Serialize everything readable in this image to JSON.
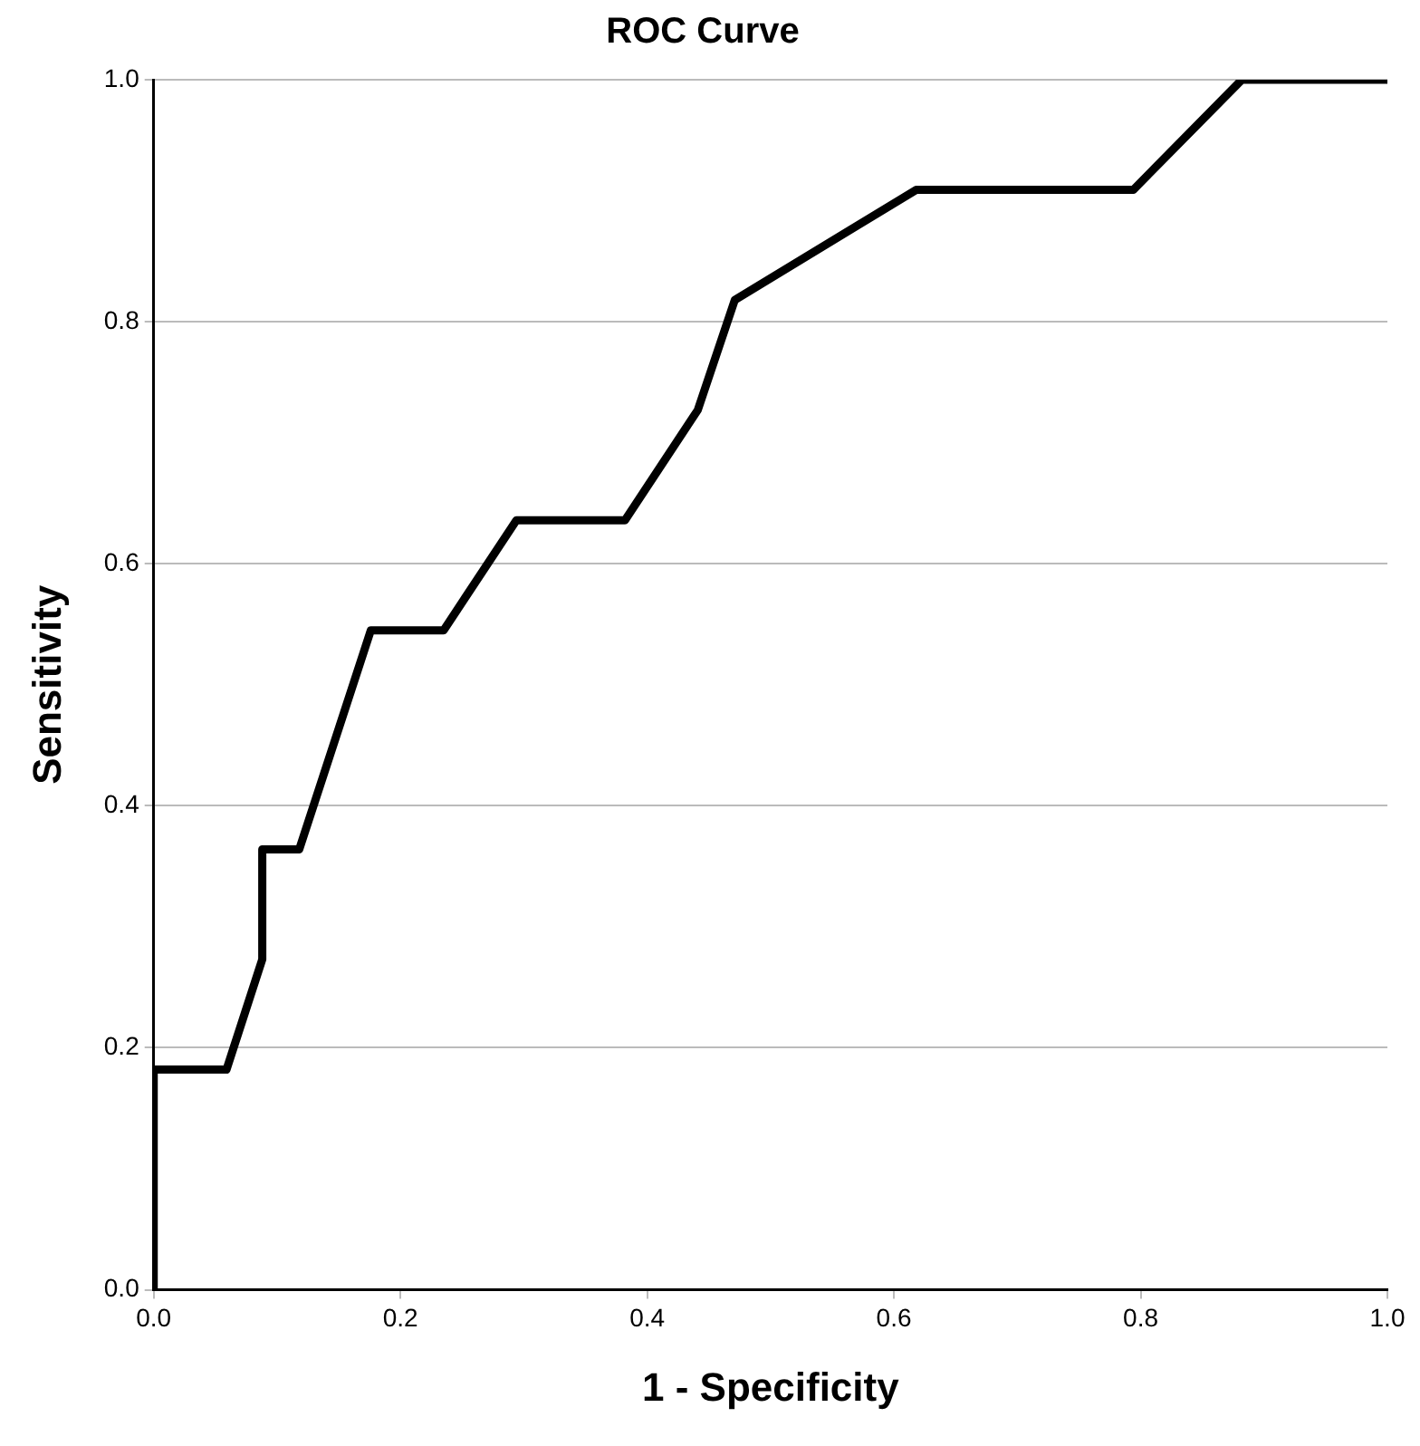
{
  "chart_data": {
    "type": "line",
    "title": "ROC Curve",
    "xlabel": "1 - Specificity",
    "ylabel": "Sensitivity",
    "x": [
      0,
      0,
      0.059,
      0.088,
      0.088,
      0.118,
      0.176,
      0.235,
      0.294,
      0.382,
      0.441,
      0.471,
      0.618,
      0.794,
      0.882,
      1
    ],
    "series": [
      {
        "color": "#000000",
        "values": [
          0,
          0.182,
          0.182,
          0.273,
          0.364,
          0.364,
          0.545,
          0.545,
          0.636,
          0.636,
          0.727,
          0.818,
          0.909,
          0.909,
          1,
          1
        ]
      }
    ],
    "xlim": [
      0,
      1
    ],
    "ylim": [
      0,
      1
    ],
    "xticks": [
      {
        "value": 0,
        "label": "0.0"
      },
      {
        "value": 0.2,
        "label": "0.2"
      },
      {
        "value": 0.4,
        "label": "0.4"
      },
      {
        "value": 0.6,
        "label": "0.6"
      },
      {
        "value": 0.8,
        "label": "0.8"
      },
      {
        "value": 1,
        "label": "1.0"
      }
    ],
    "yticks": [
      {
        "value": 0,
        "label": "0.0"
      },
      {
        "value": 0.2,
        "label": "0.2"
      },
      {
        "value": 0.4,
        "label": "0.4"
      },
      {
        "value": 0.6,
        "label": "0.6"
      },
      {
        "value": 0.8,
        "label": "0.8"
      },
      {
        "value": 1,
        "label": "1.0"
      }
    ],
    "grid": "y",
    "legend": false,
    "marker": "none",
    "line_style": "solid"
  }
}
